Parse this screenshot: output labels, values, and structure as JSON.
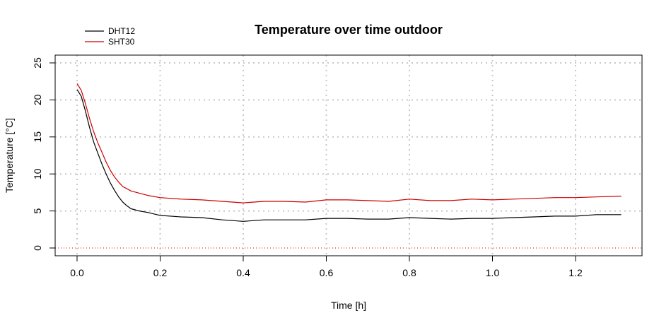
{
  "chart_data": {
    "type": "line",
    "title": "Temperature over time outdoor",
    "xlabel": "Time [h]",
    "ylabel": "Temperature [°C]",
    "xlim": [
      0.0,
      1.31
    ],
    "ylim": [
      0,
      25
    ],
    "x_ticks": [
      "0.0",
      "0.2",
      "0.4",
      "0.6",
      "0.8",
      "1.0",
      "1.2"
    ],
    "y_ticks": [
      "0",
      "5",
      "10",
      "15",
      "20",
      "25"
    ],
    "grid": true,
    "legend_position": "top-left",
    "zero_reference_line": {
      "y": 0,
      "color": "#cc0000",
      "style": "dotted"
    },
    "series": [
      {
        "name": "DHT12",
        "color": "#000000",
        "x": [
          0.0,
          0.01,
          0.02,
          0.03,
          0.04,
          0.05,
          0.06,
          0.07,
          0.08,
          0.09,
          0.1,
          0.11,
          0.12,
          0.13,
          0.15,
          0.17,
          0.2,
          0.25,
          0.3,
          0.35,
          0.4,
          0.45,
          0.5,
          0.55,
          0.6,
          0.65,
          0.7,
          0.75,
          0.8,
          0.85,
          0.9,
          0.95,
          1.0,
          1.05,
          1.1,
          1.15,
          1.2,
          1.25,
          1.31
        ],
        "y": [
          21.4,
          20.5,
          18.5,
          16.3,
          14.3,
          12.8,
          11.3,
          10.0,
          8.8,
          7.8,
          6.9,
          6.2,
          5.7,
          5.3,
          5.0,
          4.8,
          4.4,
          4.2,
          4.1,
          3.8,
          3.6,
          3.8,
          3.8,
          3.8,
          4.0,
          4.0,
          3.9,
          3.9,
          4.1,
          4.0,
          3.9,
          4.0,
          4.0,
          4.1,
          4.2,
          4.3,
          4.3,
          4.5,
          4.5
        ]
      },
      {
        "name": "SHT30",
        "color": "#cc0000",
        "x": [
          0.0,
          0.01,
          0.02,
          0.03,
          0.04,
          0.05,
          0.06,
          0.07,
          0.08,
          0.09,
          0.1,
          0.11,
          0.12,
          0.13,
          0.15,
          0.17,
          0.2,
          0.25,
          0.3,
          0.35,
          0.4,
          0.45,
          0.5,
          0.55,
          0.6,
          0.65,
          0.7,
          0.75,
          0.8,
          0.85,
          0.9,
          0.95,
          1.0,
          1.05,
          1.1,
          1.15,
          1.2,
          1.25,
          1.31
        ],
        "y": [
          22.2,
          21.3,
          19.5,
          17.5,
          15.7,
          14.2,
          12.9,
          11.6,
          10.5,
          9.6,
          8.9,
          8.3,
          8.0,
          7.7,
          7.4,
          7.1,
          6.8,
          6.6,
          6.5,
          6.3,
          6.1,
          6.3,
          6.3,
          6.2,
          6.5,
          6.5,
          6.4,
          6.3,
          6.6,
          6.4,
          6.4,
          6.6,
          6.5,
          6.6,
          6.7,
          6.8,
          6.8,
          6.9,
          7.0
        ]
      }
    ]
  }
}
